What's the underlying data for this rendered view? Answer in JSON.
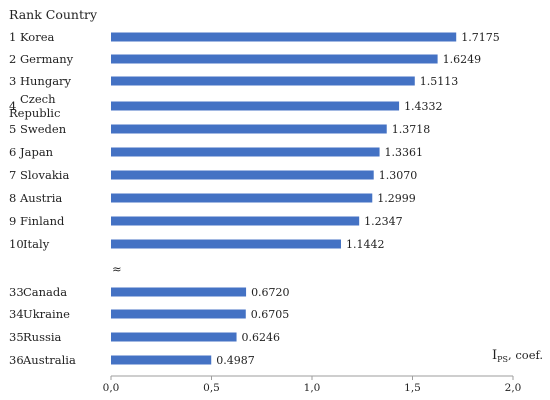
{
  "chart_data": {
    "type": "bar",
    "orientation": "horizontal",
    "header": "Rank Country",
    "xlabel_main": "I",
    "xlabel_sub": "PS",
    "xlabel_suffix": ", coef.",
    "xlim": [
      0,
      2
    ],
    "xticks": [
      "0,0",
      "0,5",
      "1,0",
      "1,5",
      "2,0"
    ],
    "xtick_values": [
      0,
      0.5,
      1.0,
      1.5,
      2.0
    ],
    "bar_color": "#4472C4",
    "break_symbol": "≈",
    "grid": false,
    "rows": [
      {
        "rank": "1",
        "country": "Korea",
        "country_line2": "",
        "value": 1.7175,
        "label": "1.7175"
      },
      {
        "rank": "2",
        "country": "Germany",
        "country_line2": "",
        "value": 1.6249,
        "label": "1.6249"
      },
      {
        "rank": "3",
        "country": "Hungary",
        "country_line2": "",
        "value": 1.5113,
        "label": "1.5113"
      },
      {
        "rank": "4",
        "country": "Czech",
        "country_line2": "Republic",
        "value": 1.4332,
        "label": "1.4332"
      },
      {
        "rank": "5",
        "country": "Sweden",
        "country_line2": "",
        "value": 1.3718,
        "label": "1.3718"
      },
      {
        "rank": "6",
        "country": "Japan",
        "country_line2": "",
        "value": 1.3361,
        "label": "1.3361"
      },
      {
        "rank": "7",
        "country": "Slovakia",
        "country_line2": "",
        "value": 1.307,
        "label": "1.3070"
      },
      {
        "rank": "8",
        "country": "Austria",
        "country_line2": "",
        "value": 1.2999,
        "label": "1.2999"
      },
      {
        "rank": "9",
        "country": "Finland",
        "country_line2": "",
        "value": 1.2347,
        "label": "1.2347"
      },
      {
        "rank": "10",
        "country": "Italy",
        "country_line2": "",
        "value": 1.1442,
        "label": "1.1442"
      },
      {
        "rank": "33",
        "country": "Canada",
        "country_line2": "",
        "value": 0.672,
        "label": "0.6720"
      },
      {
        "rank": "34",
        "country": "Ukraine",
        "country_line2": "",
        "value": 0.6705,
        "label": "0.6705"
      },
      {
        "rank": "35",
        "country": "Russia",
        "country_line2": "",
        "value": 0.6246,
        "label": "0.6246"
      },
      {
        "rank": "36",
        "country": "Australia",
        "country_line2": "",
        "value": 0.4987,
        "label": "0.4987"
      }
    ]
  }
}
